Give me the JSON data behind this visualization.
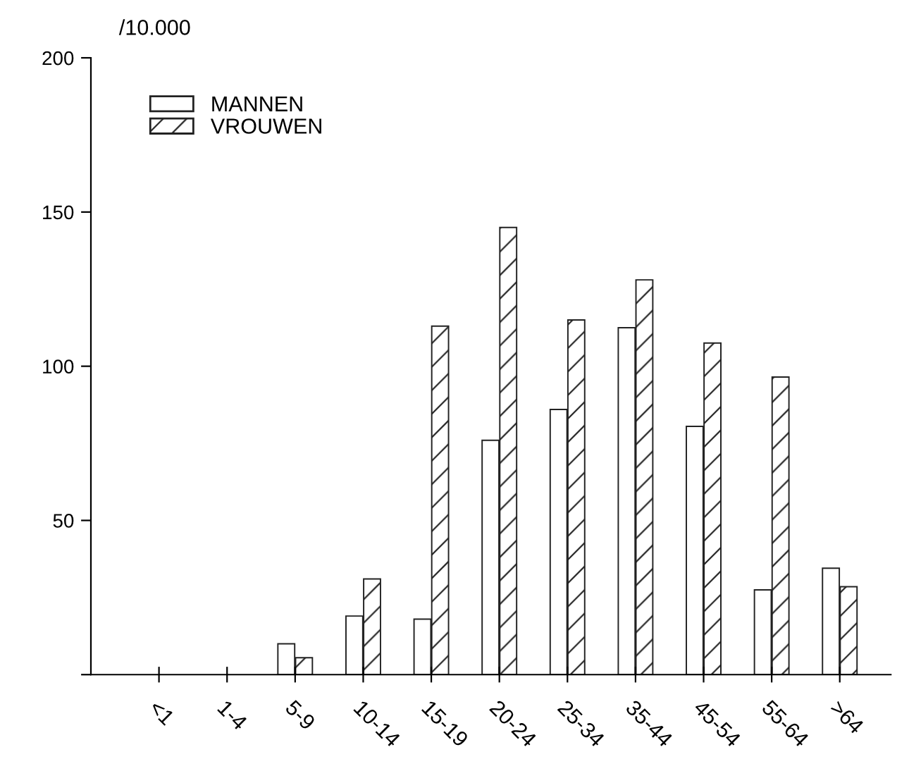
{
  "chart_data": {
    "type": "bar",
    "ylabel": "/10.000",
    "categories": [
      "<1",
      "1-4",
      "5-9",
      "10-14",
      "15-19",
      "20-24",
      "25-34",
      "35-44",
      "45-54",
      "55-64",
      ">64"
    ],
    "series": [
      {
        "name": "MANNEN",
        "color": "#ffffff",
        "values": [
          0,
          0,
          10,
          19,
          18,
          76,
          86,
          112.5,
          80.5,
          27.5,
          34.5
        ]
      },
      {
        "name": "VROUWEN",
        "color": "#222222",
        "values": [
          0,
          0,
          5.5,
          31,
          113,
          145,
          115,
          128,
          107.5,
          96.5,
          28.5
        ]
      }
    ],
    "ylim": [
      0,
      200
    ],
    "yticks": [
      {
        "value": 0,
        "label": null
      },
      50,
      100,
      150,
      200
    ],
    "grid": false,
    "legend": "top left"
  }
}
